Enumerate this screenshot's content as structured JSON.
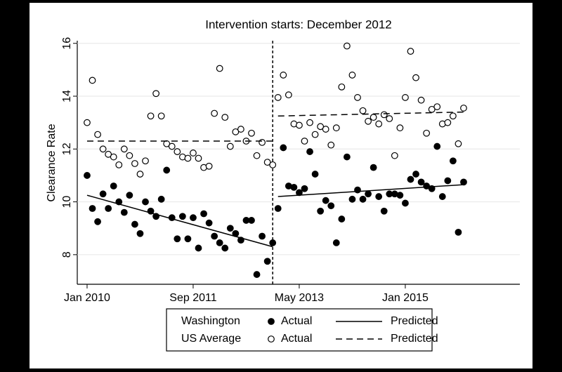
{
  "chart_data": {
    "type": "scatter",
    "title": "Intervention starts: December 2012",
    "ylabel": "Clearance Rate",
    "xlim": [
      -1.85,
      81.6
    ],
    "ylim": [
      6.88,
      16.1
    ],
    "xticks": [
      {
        "value": 0,
        "label": "Jan 2010"
      },
      {
        "value": 20,
        "label": "Sep 2011"
      },
      {
        "value": 40,
        "label": "May 2013"
      },
      {
        "value": 60,
        "label": "Jan 2015"
      }
    ],
    "yticks": [
      8,
      10,
      12,
      14,
      16
    ],
    "vline": 35,
    "series": [
      {
        "name": "Washington",
        "label": "Actual",
        "style": "filled",
        "color": "#000000",
        "x": [
          0,
          1,
          2,
          3,
          4,
          5,
          6,
          7,
          8,
          9,
          10,
          11,
          12,
          13,
          14,
          15,
          16,
          17,
          18,
          19,
          20,
          21,
          22,
          23,
          24,
          25,
          26,
          27,
          28,
          29,
          30,
          31,
          32,
          33,
          34,
          35,
          36,
          37,
          38,
          39,
          40,
          41,
          42,
          43,
          44,
          45,
          46,
          47,
          48,
          49,
          50,
          51,
          52,
          53,
          54,
          55,
          56,
          57,
          58,
          59,
          60,
          61,
          62,
          63,
          64,
          65,
          66,
          67,
          68,
          69,
          70,
          71
        ],
        "values": [
          11.0,
          9.75,
          9.25,
          10.3,
          9.75,
          10.6,
          10.0,
          9.6,
          10.25,
          9.15,
          8.8,
          10.0,
          9.65,
          9.45,
          10.1,
          11.2,
          9.4,
          8.6,
          9.45,
          8.6,
          9.4,
          8.25,
          9.55,
          9.2,
          8.7,
          8.45,
          8.25,
          9.0,
          8.8,
          8.55,
          9.3,
          9.3,
          7.25,
          8.7,
          7.75,
          8.45,
          9.75,
          12.05,
          10.6,
          10.55,
          10.35,
          10.5,
          11.9,
          11.05,
          9.65,
          10.05,
          9.85,
          8.45,
          9.35,
          11.7,
          10.1,
          10.45,
          10.1,
          10.3,
          11.3,
          10.2,
          9.65,
          10.3,
          10.3,
          10.25,
          9.95,
          10.85,
          11.05,
          10.75,
          10.6,
          10.5,
          12.1,
          10.2,
          10.8,
          11.55,
          8.85,
          10.75
        ]
      },
      {
        "name": "US Average",
        "label": "Actual",
        "style": "hollow",
        "color": "#000000",
        "x": [
          0,
          1,
          2,
          3,
          4,
          5,
          6,
          7,
          8,
          9,
          10,
          11,
          12,
          13,
          14,
          15,
          16,
          17,
          18,
          19,
          20,
          21,
          22,
          23,
          24,
          25,
          26,
          27,
          28,
          29,
          30,
          31,
          32,
          33,
          34,
          35,
          36,
          37,
          38,
          39,
          40,
          41,
          42,
          43,
          44,
          45,
          46,
          47,
          48,
          49,
          50,
          51,
          52,
          53,
          54,
          55,
          56,
          57,
          58,
          59,
          60,
          61,
          62,
          63,
          64,
          65,
          66,
          67,
          68,
          69,
          70,
          71
        ],
        "values": [
          13.0,
          14.6,
          12.55,
          12.0,
          11.8,
          11.7,
          11.4,
          12.0,
          11.75,
          11.45,
          11.05,
          11.55,
          13.25,
          14.1,
          13.25,
          12.2,
          12.1,
          11.9,
          11.7,
          11.65,
          11.85,
          11.65,
          11.3,
          11.35,
          13.35,
          15.05,
          13.2,
          12.1,
          12.65,
          12.75,
          12.3,
          12.6,
          11.75,
          12.25,
          11.5,
          11.4,
          13.95,
          14.8,
          14.05,
          12.95,
          12.9,
          12.3,
          13.0,
          12.55,
          12.85,
          12.75,
          12.15,
          12.8,
          14.35,
          15.9,
          14.8,
          13.95,
          13.45,
          13.05,
          13.2,
          12.95,
          13.3,
          13.15,
          11.75,
          12.8,
          13.95,
          15.7,
          14.7,
          13.85,
          12.6,
          13.5,
          13.6,
          12.95,
          13.0,
          13.25,
          12.2,
          13.55
        ]
      },
      {
        "name": "Washington",
        "label": "Predicted",
        "style": "solid",
        "color": "#000000",
        "x": [
          0,
          35
        ],
        "values": [
          10.25,
          8.3
        ]
      },
      {
        "name": "US Average",
        "label": "Predicted",
        "style": "dashed",
        "color": "#000000",
        "x": [
          0,
          35
        ],
        "values": [
          12.3,
          12.3
        ]
      },
      {
        "name": "Washington",
        "label": "Predicted",
        "style": "solid",
        "color": "#000000",
        "x": [
          36,
          71
        ],
        "values": [
          10.2,
          10.65
        ]
      },
      {
        "name": "US Average",
        "label": "Predicted",
        "style": "dashed",
        "color": "#000000",
        "x": [
          36,
          71
        ],
        "values": [
          13.25,
          13.4
        ]
      }
    ]
  }
}
